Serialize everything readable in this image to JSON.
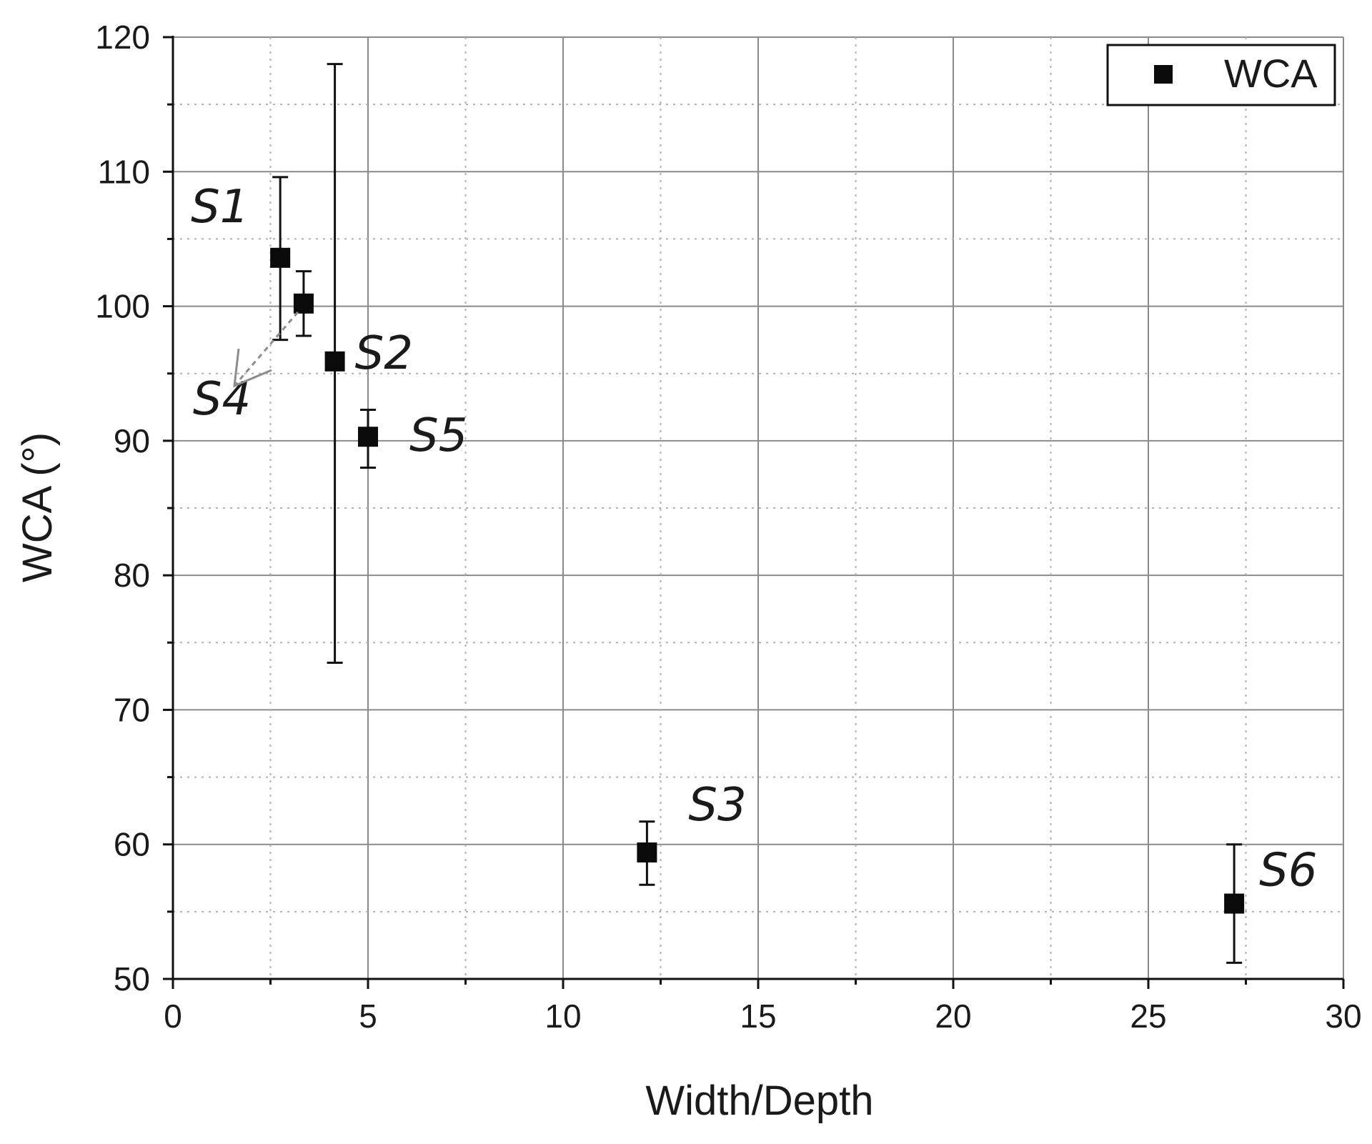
{
  "chart_data": {
    "type": "scatter",
    "title": "",
    "xlabel": "Width/Depth",
    "ylabel": "WCA (°)",
    "xlim": [
      0,
      30
    ],
    "ylim": [
      50,
      120
    ],
    "xticks": [
      0,
      5,
      10,
      15,
      20,
      25,
      30
    ],
    "yticks": [
      50,
      60,
      70,
      80,
      90,
      100,
      110,
      120
    ],
    "grid": true,
    "legend": {
      "position": "top-right",
      "entries": [
        "WCA"
      ]
    },
    "series": [
      {
        "name": "WCA",
        "points": [
          {
            "label": "S1",
            "x": 2.75,
            "y": 103.6,
            "err_low": 97.5,
            "err_high": 109.6
          },
          {
            "label": "S4",
            "x": 3.35,
            "y": 100.2,
            "err_low": 97.8,
            "err_high": 102.6
          },
          {
            "label": "S2",
            "x": 4.15,
            "y": 95.9,
            "err_low": 73.5,
            "err_high": 118.0
          },
          {
            "label": "S5",
            "x": 5.0,
            "y": 90.3,
            "err_low": 88.0,
            "err_high": 92.3
          },
          {
            "label": "S3",
            "x": 12.15,
            "y": 59.4,
            "err_low": 57.0,
            "err_high": 61.7
          },
          {
            "label": "S6",
            "x": 27.2,
            "y": 55.6,
            "err_low": 51.2,
            "err_high": 60.0
          }
        ]
      }
    ],
    "annotations": [
      {
        "text": "S4",
        "type": "arrow",
        "points_to": "S4"
      }
    ]
  }
}
